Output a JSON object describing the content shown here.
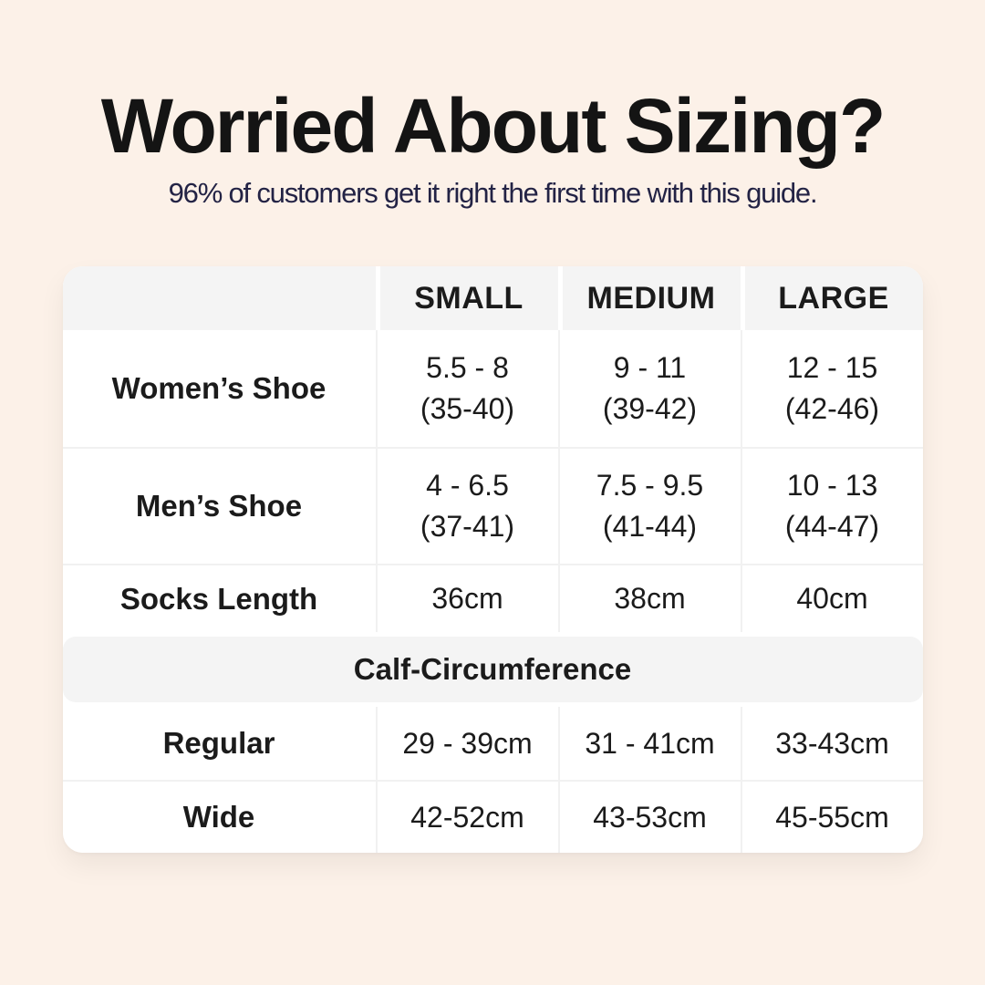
{
  "header": {
    "title": "Worried About Sizing?",
    "subtitle": "96% of customers get it right the first time with this guide."
  },
  "table": {
    "columns": [
      "",
      "SMALL",
      "MEDIUM",
      "LARGE"
    ],
    "shoe_rows": [
      {
        "label": "Women’s Shoe",
        "small": [
          "5.5 - 8",
          "(35-40)"
        ],
        "medium": [
          "9 - 11",
          "(39-42)"
        ],
        "large": [
          "12 - 15",
          "(42-46)"
        ]
      },
      {
        "label": "Men’s Shoe",
        "small": [
          "4 - 6.5",
          "(37-41)"
        ],
        "medium": [
          "7.5 - 9.5",
          "(41-44)"
        ],
        "large": [
          "10 - 13",
          "(44-47)"
        ]
      }
    ],
    "socks_row": {
      "label": "Socks Length",
      "small": "36cm",
      "medium": "38cm",
      "large": "40cm"
    },
    "section_header": "Calf-Circumference",
    "calf_rows": [
      {
        "label": "Regular",
        "small": "29 - 39cm",
        "medium": "31 - 41cm",
        "large": "33-43cm"
      },
      {
        "label": "Wide",
        "small": "42-52cm",
        "medium": "43-53cm",
        "large": "45-55cm"
      }
    ]
  },
  "colors": {
    "page_background": "#fcf1e8",
    "card_background": "#ffffff",
    "header_band_background": "#f4f4f4",
    "title_text": "#141414",
    "subtitle_text": "#232345",
    "table_text": "#1b1b1b",
    "divider": "#f1f1f1"
  },
  "chart_data": {
    "type": "table",
    "title": "Worried About Sizing?",
    "subtitle": "96% of customers get it right the first time with this guide.",
    "columns": [
      "",
      "SMALL",
      "MEDIUM",
      "LARGE"
    ],
    "rows": [
      [
        "Women’s Shoe",
        "5.5 - 8 (35-40)",
        "9 - 11 (39-42)",
        "12 - 15 (42-46)"
      ],
      [
        "Men’s Shoe",
        "4 - 6.5 (37-41)",
        "7.5 - 9.5 (41-44)",
        "10 - 13 (44-47)"
      ],
      [
        "Socks Length",
        "36cm",
        "38cm",
        "40cm"
      ],
      [
        "Calf-Circumference",
        "",
        "",
        ""
      ],
      [
        "Regular",
        "29 - 39cm",
        "31 - 41cm",
        "33-43cm"
      ],
      [
        "Wide",
        "42-52cm",
        "43-53cm",
        "45-55cm"
      ]
    ]
  }
}
